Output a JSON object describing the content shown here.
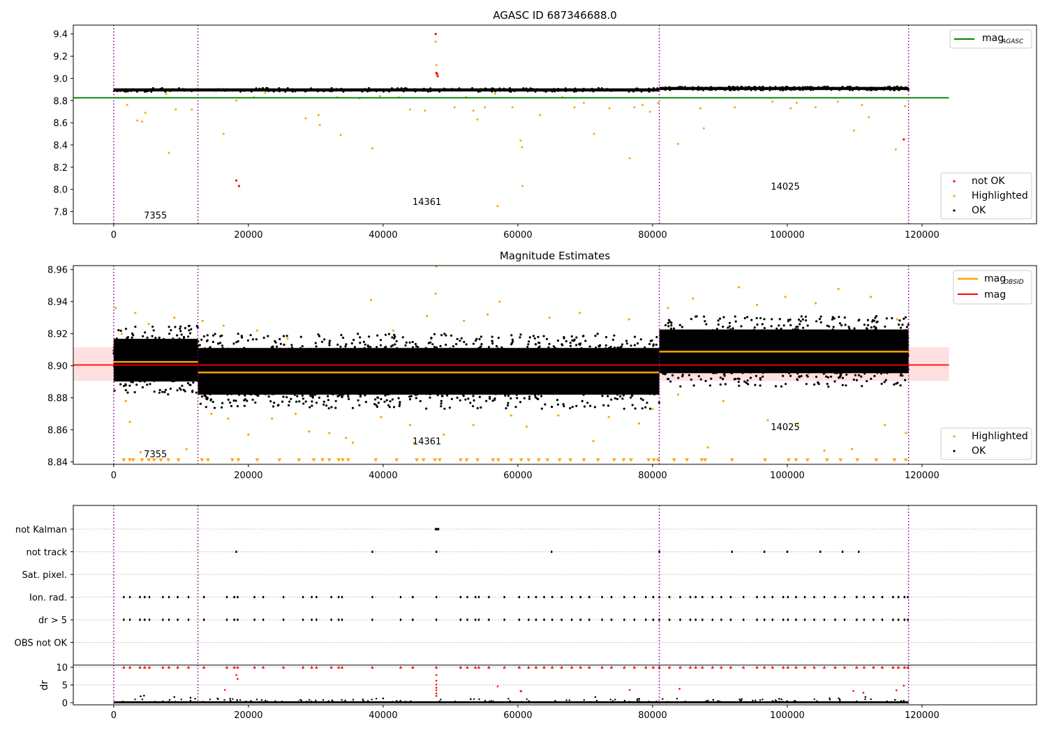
{
  "chart_data": [
    {
      "type": "scatter",
      "title": "AGASC ID 687346688.0",
      "xlim": [
        -6000,
        137000
      ],
      "ylim": [
        7.69,
        9.48
      ],
      "xticks": [
        0,
        20000,
        40000,
        60000,
        80000,
        100000,
        120000
      ],
      "yticks": [
        7.8,
        8.0,
        8.2,
        8.4,
        8.6,
        8.8,
        9.0,
        9.2,
        9.4
      ],
      "ytick_labels": [
        "7.8",
        "8.0",
        "8.2",
        "8.4",
        "8.6",
        "8.8",
        "9.0",
        "9.2",
        "9.4"
      ],
      "obsid_boundaries": [
        0,
        12500,
        81000,
        118000
      ],
      "obsid_labels": [
        {
          "text": "7355",
          "x": 6200,
          "y": 7.77
        },
        {
          "text": "14361",
          "x": 46500,
          "y": 7.89
        },
        {
          "text": "14025",
          "x": 99700,
          "y": 8.03
        }
      ],
      "reference_lines": [
        {
          "name": "mag_AGASC",
          "y": 8.825,
          "x_range": [
            -6000,
            124000
          ],
          "color": "#008000"
        }
      ],
      "bands": [
        {
          "x_range": [
            0,
            81000
          ],
          "y_center": 8.896,
          "half_width": 0.014
        },
        {
          "x_range": [
            81000,
            118000
          ],
          "y_center": 8.909,
          "half_width": 0.014
        }
      ],
      "highlighted_points": [
        [
          2000,
          8.76
        ],
        [
          3500,
          8.62
        ],
        [
          4200,
          8.61
        ],
        [
          4700,
          8.69
        ],
        [
          7800,
          8.86
        ],
        [
          8200,
          8.33
        ],
        [
          9200,
          8.72
        ],
        [
          11600,
          8.72
        ],
        [
          16300,
          8.5
        ],
        [
          18200,
          8.8
        ],
        [
          20800,
          8.83
        ],
        [
          22500,
          8.87
        ],
        [
          28500,
          8.64
        ],
        [
          30400,
          8.67
        ],
        [
          30600,
          8.58
        ],
        [
          33200,
          8.83
        ],
        [
          33700,
          8.49
        ],
        [
          36500,
          8.82
        ],
        [
          38400,
          8.37
        ],
        [
          39500,
          8.84
        ],
        [
          42300,
          8.83
        ],
        [
          44000,
          8.72
        ],
        [
          46200,
          8.71
        ],
        [
          47800,
          9.33
        ],
        [
          47900,
          9.12
        ],
        [
          50600,
          8.74
        ],
        [
          52300,
          8.83
        ],
        [
          53400,
          8.71
        ],
        [
          54000,
          8.63
        ],
        [
          55100,
          8.74
        ],
        [
          56600,
          8.86
        ],
        [
          57000,
          7.85
        ],
        [
          59200,
          8.74
        ],
        [
          60400,
          8.44
        ],
        [
          60600,
          8.38
        ],
        [
          60700,
          8.03
        ],
        [
          63300,
          8.67
        ],
        [
          66600,
          8.83
        ],
        [
          68400,
          8.74
        ],
        [
          69800,
          8.78
        ],
        [
          71300,
          8.5
        ],
        [
          73600,
          8.73
        ],
        [
          76600,
          8.28
        ],
        [
          77300,
          8.74
        ],
        [
          78500,
          8.76
        ],
        [
          79600,
          8.7
        ],
        [
          80800,
          8.78
        ],
        [
          83800,
          8.41
        ],
        [
          87100,
          8.73
        ],
        [
          87600,
          8.55
        ],
        [
          92200,
          8.74
        ],
        [
          97800,
          8.79
        ],
        [
          100500,
          8.73
        ],
        [
          101400,
          8.78
        ],
        [
          104200,
          8.74
        ],
        [
          107500,
          8.79
        ],
        [
          109900,
          8.53
        ],
        [
          111100,
          8.76
        ],
        [
          112100,
          8.65
        ],
        [
          116100,
          8.36
        ],
        [
          117500,
          8.75
        ]
      ],
      "not_ok_points": [
        [
          18200,
          8.08
        ],
        [
          18600,
          8.03
        ],
        [
          47800,
          9.4
        ],
        [
          47900,
          9.05
        ],
        [
          48000,
          9.04
        ],
        [
          48100,
          9.02
        ],
        [
          117300,
          8.45
        ]
      ],
      "legend_upper": {
        "entries": [
          "mag",
          "AGASC"
        ],
        "placement": "upper right"
      },
      "legend_lower": {
        "entries": [
          "not OK",
          "Highlighted",
          "OK"
        ],
        "placement": "lower right"
      }
    },
    {
      "type": "scatter",
      "title": "Magnitude Estimates",
      "xlim": [
        -6000,
        137000
      ],
      "ylim": [
        8.8385,
        8.9625
      ],
      "xticks": [
        0,
        20000,
        40000,
        60000,
        80000,
        100000,
        120000
      ],
      "yticks": [
        8.84,
        8.86,
        8.88,
        8.9,
        8.92,
        8.94,
        8.96
      ],
      "ytick_labels": [
        "8.84",
        "8.86",
        "8.88",
        "8.90",
        "8.92",
        "8.94",
        "8.96"
      ],
      "obsid_boundaries": [
        0,
        12500,
        81000,
        118000
      ],
      "obsid_labels": [
        {
          "text": "7355",
          "x": 6200,
          "y": 8.845
        },
        {
          "text": "14361",
          "x": 46500,
          "y": 8.853
        },
        {
          "text": "14025",
          "x": 99700,
          "y": 8.862
        }
      ],
      "reference_lines": [
        {
          "name": "mag",
          "y": 8.9005,
          "x_range": [
            -6000,
            124000
          ],
          "color": "#ff0000"
        }
      ],
      "reference_band": {
        "y_range": [
          8.8905,
          8.9115
        ],
        "x_range": [
          -6000,
          124000
        ]
      },
      "obsid_means": [
        {
          "x_range": [
            0,
            12500
          ],
          "y": 8.9024
        },
        {
          "x_range": [
            12500,
            81000
          ],
          "y": 8.8958
        },
        {
          "x_range": [
            81000,
            118000
          ],
          "y": 8.9088
        }
      ],
      "ok_clouds": [
        {
          "x_range": [
            0,
            12500
          ],
          "y_range": [
            8.882,
            8.925
          ]
        },
        {
          "x_range": [
            12500,
            81000
          ],
          "y_range": [
            8.873,
            8.92
          ]
        },
        {
          "x_range": [
            81000,
            118000
          ],
          "y_range": [
            8.887,
            8.931
          ]
        }
      ],
      "highlighted_points": [
        [
          300,
          8.936
        ],
        [
          1200,
          8.92
        ],
        [
          1800,
          8.878
        ],
        [
          2400,
          8.865
        ],
        [
          3200,
          8.933
        ],
        [
          4000,
          8.846
        ],
        [
          5200,
          8.926
        ],
        [
          9000,
          8.93
        ],
        [
          10800,
          8.848
        ],
        [
          13200,
          8.928
        ],
        [
          14500,
          8.87
        ],
        [
          16300,
          8.925
        ],
        [
          17000,
          8.867
        ],
        [
          20000,
          8.857
        ],
        [
          21300,
          8.922
        ],
        [
          23500,
          8.867
        ],
        [
          25800,
          8.917
        ],
        [
          27000,
          8.87
        ],
        [
          29000,
          8.859
        ],
        [
          32000,
          8.858
        ],
        [
          34500,
          8.855
        ],
        [
          35500,
          8.852
        ],
        [
          38200,
          8.941
        ],
        [
          39700,
          8.868
        ],
        [
          41500,
          8.922
        ],
        [
          44000,
          8.863
        ],
        [
          44600,
          8.852
        ],
        [
          46500,
          8.931
        ],
        [
          47800,
          8.945
        ],
        [
          47900,
          8.962
        ],
        [
          49000,
          8.857
        ],
        [
          52000,
          8.928
        ],
        [
          53400,
          8.863
        ],
        [
          55500,
          8.932
        ],
        [
          57300,
          8.94
        ],
        [
          59000,
          8.869
        ],
        [
          61300,
          8.862
        ],
        [
          64700,
          8.93
        ],
        [
          66000,
          8.869
        ],
        [
          69200,
          8.933
        ],
        [
          71200,
          8.853
        ],
        [
          73500,
          8.868
        ],
        [
          76500,
          8.929
        ],
        [
          78000,
          8.864
        ],
        [
          80000,
          8.873
        ],
        [
          82300,
          8.936
        ],
        [
          83800,
          8.882
        ],
        [
          86000,
          8.942
        ],
        [
          88200,
          8.849
        ],
        [
          90500,
          8.878
        ],
        [
          92800,
          8.949
        ],
        [
          95500,
          8.938
        ],
        [
          97100,
          8.866
        ],
        [
          99700,
          8.943
        ],
        [
          101600,
          8.864
        ],
        [
          104200,
          8.939
        ],
        [
          105500,
          8.847
        ],
        [
          107600,
          8.948
        ],
        [
          109600,
          8.848
        ],
        [
          112400,
          8.943
        ],
        [
          114500,
          8.863
        ],
        [
          116300,
          8.929
        ],
        [
          117600,
          8.858
        ]
      ],
      "clipped_markers_y": 8.84,
      "clipped_x": [
        1500,
        2400,
        2900,
        4200,
        5200,
        6000,
        7000,
        8100,
        9600,
        13100,
        14000,
        17600,
        18500,
        21300,
        24600,
        27500,
        29700,
        31000,
        32000,
        33400,
        34000,
        34800,
        38900,
        42000,
        45000,
        46000,
        47700,
        48400,
        51500,
        52400,
        54000,
        56300,
        57100,
        59000,
        60500,
        61600,
        63100,
        64400,
        66200,
        67800,
        69800,
        71900,
        74300,
        75700,
        76800,
        79400,
        80200,
        80800,
        83200,
        85100,
        87300,
        87800,
        91800,
        96700,
        100200,
        101300,
        103000,
        105900,
        107900,
        110400,
        113200,
        115900,
        117600
      ],
      "legend_upper": {
        "entries": [
          "mag",
          "OBSID",
          "mag"
        ],
        "placement": "upper right"
      },
      "legend_lower": {
        "entries": [
          "Highlighted",
          "OK"
        ],
        "placement": "lower right"
      }
    },
    {
      "type": "scatter",
      "title": "",
      "xlim": [
        -6000,
        137000
      ],
      "categories": [
        "not Kalman",
        "not track",
        "Sat. pixel.",
        "Ion. rad.",
        "dr > 5",
        "OBS not OK"
      ],
      "obsid_boundaries": [
        0,
        12500,
        81000,
        118000
      ],
      "flag_events": {
        "not Kalman": [
          47800,
          48000,
          48200
        ],
        "not track": [
          18200,
          38400,
          47900,
          65000,
          81000,
          91800,
          96600,
          100000,
          104900,
          108200,
          110600
        ],
        "Sat. pixel.": [],
        "Ion. rad.": [
          1500,
          2400,
          3900,
          4600,
          5300,
          7300,
          8200,
          9500,
          11100,
          13400,
          16800,
          17900,
          18400,
          20900,
          22200,
          25200,
          28100,
          29400,
          30100,
          32300,
          33400,
          33900,
          38400,
          42600,
          44400,
          47900,
          51500,
          52500,
          53700,
          54200,
          55700,
          58000,
          60200,
          61600,
          62700,
          63900,
          65100,
          66500,
          68000,
          69300,
          70600,
          72500,
          73900,
          75800,
          77300,
          79000,
          80100,
          81000,
          82500,
          84100,
          85600,
          86400,
          87400,
          88900,
          90200,
          91600,
          93500,
          95500,
          96600,
          97800,
          99400,
          100100,
          101300,
          102600,
          104000,
          105500,
          107100,
          108500,
          110300,
          111400,
          112800,
          114100,
          115700,
          116500,
          117400,
          117900
        ],
        "dr > 5": [
          1500,
          2400,
          3900,
          4600,
          5300,
          7300,
          8200,
          9500,
          11100,
          13400,
          16800,
          17900,
          18400,
          20900,
          22200,
          25200,
          28100,
          29400,
          30100,
          32300,
          33400,
          33900,
          38400,
          42600,
          44400,
          47900,
          51500,
          52500,
          53700,
          54200,
          55700,
          58000,
          60200,
          61600,
          62700,
          63900,
          65100,
          66500,
          68000,
          69300,
          70600,
          72500,
          73900,
          75800,
          77300,
          79000,
          80100,
          81000,
          82500,
          84100,
          85600,
          86400,
          87400,
          88900,
          90200,
          91600,
          93500,
          95500,
          96600,
          97800,
          99400,
          100100,
          101300,
          102600,
          104000,
          105500,
          107100,
          108500,
          110300,
          111400,
          112800,
          114100,
          115700,
          116500,
          117400,
          117900
        ],
        "OBS not OK": []
      }
    },
    {
      "type": "scatter",
      "title": "",
      "xlabel": "",
      "ylabel": "dr",
      "xlim": [
        -6000,
        137000
      ],
      "ylim": [
        -0.6,
        10.6
      ],
      "yticks": [
        0,
        5,
        10
      ],
      "ytick_labels": [
        "0",
        "5",
        "10"
      ],
      "xticks": [
        0,
        20000,
        40000,
        60000,
        80000,
        100000,
        120000
      ],
      "xtick_labels": [
        "0",
        "20000",
        "40000",
        "60000",
        "80000",
        "100000",
        "120000"
      ],
      "obsid_boundaries": [
        0,
        12500,
        81000,
        118000
      ],
      "clipped_y": 10,
      "clipped_x": [
        1500,
        2400,
        3900,
        4600,
        5300,
        7300,
        8200,
        9500,
        11100,
        13400,
        16800,
        17900,
        18400,
        20900,
        22200,
        25200,
        28100,
        29400,
        30100,
        32300,
        33400,
        33900,
        38400,
        42600,
        44400,
        47900,
        51500,
        52500,
        53700,
        54200,
        55700,
        58000,
        60200,
        61600,
        62700,
        63900,
        65100,
        66500,
        68000,
        69300,
        70600,
        72500,
        73900,
        75800,
        77300,
        79000,
        80100,
        81000,
        82500,
        84100,
        85600,
        86400,
        87400,
        88900,
        90200,
        91600,
        93500,
        95500,
        96600,
        97800,
        99400,
        100100,
        101300,
        102600,
        104000,
        105500,
        107100,
        108500,
        110300,
        111400,
        112800,
        114100,
        115700,
        116500,
        117400,
        117900
      ],
      "flagged_points": [
        [
          16500,
          3.6
        ],
        [
          18200,
          7.8
        ],
        [
          18400,
          6.7
        ],
        [
          47900,
          7.8
        ],
        [
          47900,
          6.2
        ],
        [
          47900,
          5.1
        ],
        [
          47900,
          4.2
        ],
        [
          47900,
          3.5
        ],
        [
          47900,
          2.6
        ],
        [
          47900,
          1.9
        ],
        [
          57000,
          4.6
        ],
        [
          60400,
          3.3
        ],
        [
          60500,
          3.2
        ],
        [
          76600,
          3.6
        ],
        [
          84000,
          3.9
        ],
        [
          109800,
          3.3
        ],
        [
          111300,
          2.8
        ],
        [
          116200,
          3.5
        ],
        [
          117300,
          4.8
        ]
      ],
      "ok_band_y": [
        0,
        0.4
      ],
      "ok_scatter_points": [
        [
          4000,
          1.8
        ],
        [
          4500,
          2.0
        ],
        [
          9000,
          1.6
        ],
        [
          11400,
          1.4
        ],
        [
          37000,
          0.9
        ],
        [
          40000,
          1.2
        ],
        [
          53000,
          1.0
        ],
        [
          71500,
          1.6
        ],
        [
          78000,
          1.1
        ],
        [
          89000,
          0.8
        ],
        [
          98800,
          1.1
        ],
        [
          111600,
          1.6
        ],
        [
          116000,
          0.8
        ]
      ]
    }
  ]
}
